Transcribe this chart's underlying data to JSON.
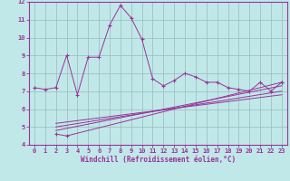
{
  "xlabel": "Windchill (Refroidissement éolien,°C)",
  "ylabel": "",
  "xlim": [
    -0.5,
    23.5
  ],
  "ylim": [
    4,
    12
  ],
  "xticks": [
    0,
    1,
    2,
    3,
    4,
    5,
    6,
    7,
    8,
    9,
    10,
    11,
    12,
    13,
    14,
    15,
    16,
    17,
    18,
    19,
    20,
    21,
    22,
    23
  ],
  "yticks": [
    4,
    5,
    6,
    7,
    8,
    9,
    10,
    11,
    12
  ],
  "bg_color": "#c0e8e8",
  "line_color": "#993399",
  "grid_color": "#99bbbb",
  "series1_x": [
    0,
    1,
    2,
    3,
    4,
    5,
    6,
    7,
    8,
    9,
    10,
    11,
    12,
    13,
    14,
    15,
    16,
    17,
    18,
    19,
    20,
    21,
    22,
    23
  ],
  "series1_y": [
    7.2,
    7.1,
    7.2,
    9.0,
    6.8,
    8.9,
    8.9,
    10.7,
    11.8,
    11.1,
    9.9,
    7.7,
    7.3,
    7.6,
    8.0,
    7.8,
    7.5,
    7.5,
    7.2,
    7.1,
    7.0,
    7.5,
    7.0,
    7.5
  ],
  "series2_x": [
    2,
    3,
    23
  ],
  "series2_y": [
    4.6,
    4.5,
    7.5
  ],
  "line2_x": [
    2,
    23
  ],
  "line2_y": [
    4.8,
    7.3
  ],
  "line3_x": [
    2,
    23
  ],
  "line3_y": [
    5.0,
    7.0
  ],
  "line4_x": [
    2,
    23
  ],
  "line4_y": [
    5.2,
    6.8
  ]
}
